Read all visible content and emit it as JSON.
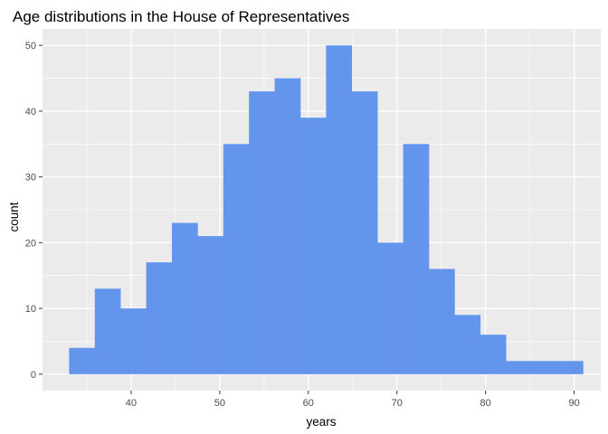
{
  "chart_data": {
    "type": "bar",
    "subtype": "histogram",
    "title": "Age distributions in the House of Representatives",
    "xlabel": "years",
    "ylabel": "count",
    "bins": {
      "start": 33.0,
      "width": 2.9,
      "counts": [
        4,
        13,
        10,
        17,
        23,
        21,
        35,
        43,
        45,
        39,
        50,
        43,
        20,
        35,
        16,
        9,
        6,
        2,
        2,
        2
      ]
    },
    "x_ticks": [
      40,
      50,
      60,
      70,
      80,
      90
    ],
    "y_ticks": [
      0,
      10,
      20,
      30,
      40,
      50
    ],
    "xlim": [
      30.0,
      93.0
    ],
    "ylim": [
      -2.5,
      52.5
    ],
    "grid": true,
    "legend": "none",
    "colors": {
      "bar_fill": "#6495ED",
      "panel_background": "#EBEBEB",
      "grid_line": "#FFFFFF",
      "tick_label": "#4D4D4D",
      "tick_mark": "#333333"
    }
  }
}
